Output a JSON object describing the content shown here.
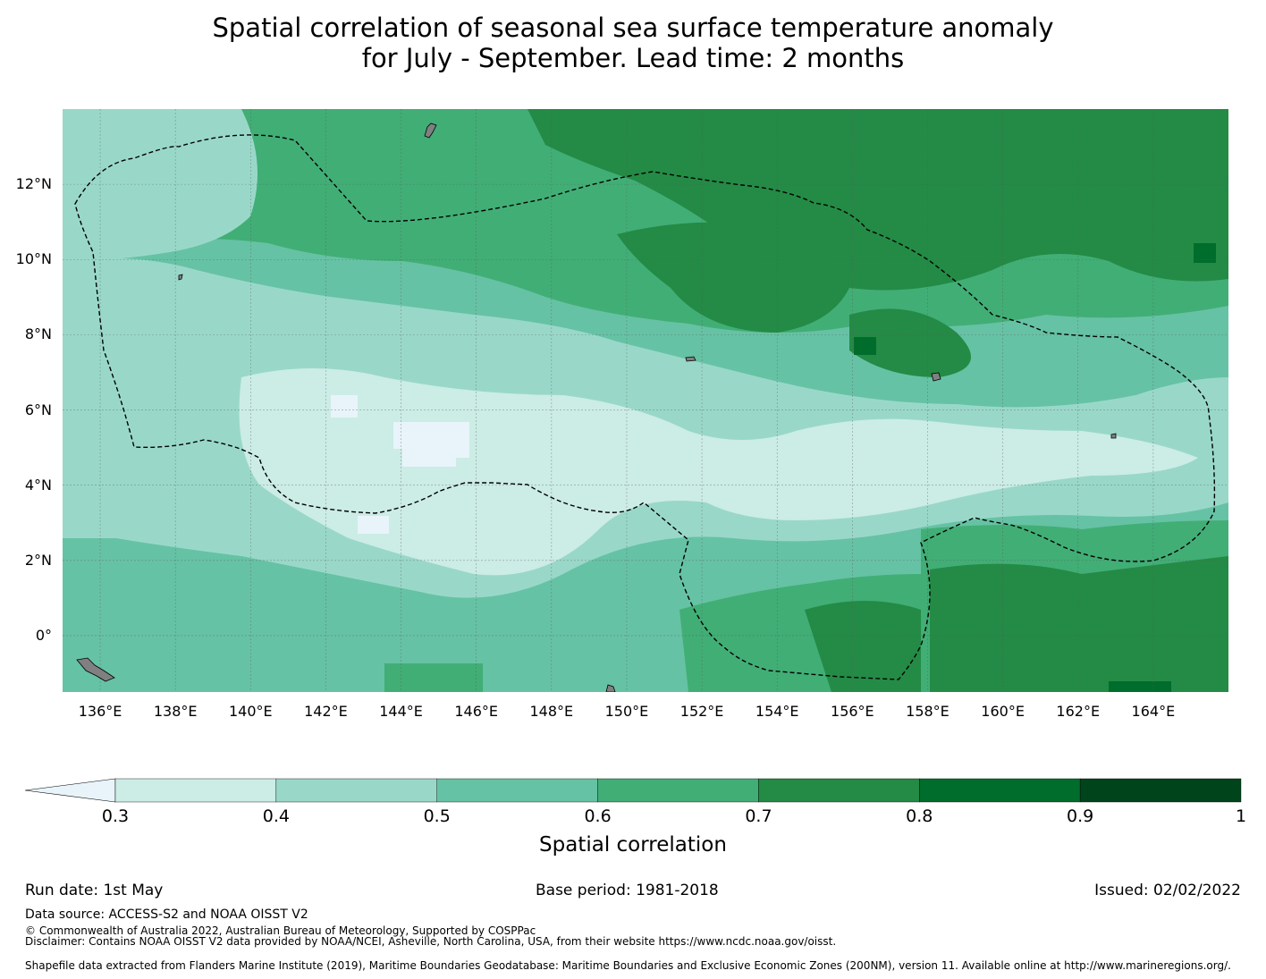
{
  "title": {
    "line1": "Spatial correlation of seasonal sea surface temperature anomaly",
    "line2": "for July - September. Lead time: 2 months"
  },
  "map": {
    "lat_ticks": [
      "12°N",
      "10°N",
      "8°N",
      "6°N",
      "4°N",
      "2°N",
      "0°"
    ],
    "lon_ticks": [
      "136°E",
      "138°E",
      "140°E",
      "142°E",
      "144°E",
      "146°E",
      "148°E",
      "150°E",
      "152°E",
      "154°E",
      "156°E",
      "158°E",
      "160°E",
      "162°E",
      "164°E"
    ],
    "lon_range": [
      135.0,
      166.0
    ],
    "lat_range": [
      -1.5,
      14.0
    ],
    "grid": true,
    "land_color": "#808080",
    "boundary_style": "dashed"
  },
  "colorbar": {
    "title": "Spatial correlation",
    "labels": [
      "0.3",
      "0.4",
      "0.5",
      "0.6",
      "0.7",
      "0.8",
      "0.9",
      "1"
    ],
    "colors": [
      "#e8f4fa",
      "#ccece6",
      "#99d8c9",
      "#66c2a4",
      "#41ae76",
      "#238b45",
      "#006d2c",
      "#00441b"
    ],
    "extend": "min"
  },
  "footer": {
    "run_date": "Run date: 1st May",
    "base_period": "Base period: 1981-2018",
    "issued": "Issued: 02/02/2022",
    "data_source": "Data source: ACCESS-S2 and NOAA OISST V2",
    "copyright": "© Commonwealth of Australia 2022, Australian Bureau of Meteorology, Supported by COSPPac",
    "disclaimer": "Disclaimer: Contains NOAA OISST V2 data provided by NOAA/NCEI, Asheville, North Carolina, USA, from their website https://www.ncdc.noaa.gov/oisst.",
    "shapefile": "Shapefile data extracted from Flanders Marine Institute (2019), Maritime Boundaries Geodatabase: Maritime Boundaries and Exclusive Economic Zones (200NM), version 11. Available online at http://www.marineregions.org/."
  }
}
